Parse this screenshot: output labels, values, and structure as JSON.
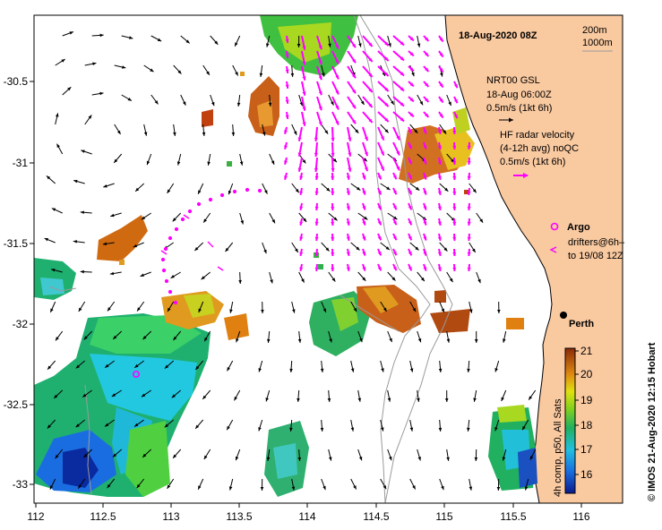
{
  "title": "18-Aug-2020 08Z",
  "isobath_legend": [
    "200m",
    "1000m"
  ],
  "gsl_legend": [
    "NRT00 GSL",
    "18-Aug 06:00Z",
    "0.5m/s (1kt 6h)"
  ],
  "hf_legend": [
    "HF radar velocity",
    "(4-12h avg) noQC",
    "0.5m/s (1kt 6h)"
  ],
  "argo_label": "Argo",
  "drifters_label": [
    "drifters@6h–",
    "to 19/08 12Z"
  ],
  "city_label": "Perth",
  "colorbar": {
    "label": "4h comp, p50, All Sats",
    "ticks": [
      "21",
      "20",
      "19",
      "18",
      "17",
      "16"
    ]
  },
  "credit": "©  IMOS 21-Aug-2020 12:15 Hobart",
  "x_ticks": [
    "112",
    "112.5",
    "113",
    "113.5",
    "114",
    "114.5",
    "115",
    "115.5",
    "116"
  ],
  "y_ticks": [
    "-30.5",
    "-31",
    "-31.5",
    "-32",
    "-32.5",
    "-33"
  ],
  "colors": {
    "land": "#f9c9a0",
    "hf_arrow": "#ff00ff",
    "gsl_arrow": "#000000",
    "isobath": "#9a9a9a"
  }
}
